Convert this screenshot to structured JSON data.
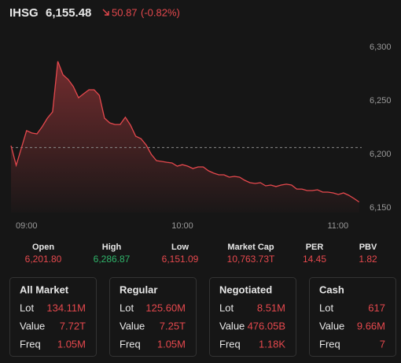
{
  "header": {
    "ticker": "IHSG",
    "price": "6,155.48",
    "change": "50.87",
    "change_pct": "(-0.82%)"
  },
  "chart_data": {
    "type": "line",
    "x": [
      "09:00",
      "09:02",
      "09:04",
      "09:06",
      "09:08",
      "09:10",
      "09:12",
      "09:14",
      "09:16",
      "09:18",
      "09:20",
      "09:22",
      "09:24",
      "09:26",
      "09:28",
      "09:30",
      "09:32",
      "09:34",
      "09:36",
      "09:38",
      "09:40",
      "09:42",
      "09:44",
      "09:46",
      "09:48",
      "09:50",
      "09:52",
      "09:54",
      "09:56",
      "09:58",
      "10:00",
      "10:02",
      "10:04",
      "10:06",
      "10:08",
      "10:10",
      "10:12",
      "10:14",
      "10:16",
      "10:18",
      "10:20",
      "10:22",
      "10:24",
      "10:26",
      "10:28",
      "10:30",
      "10:32",
      "10:34",
      "10:36",
      "10:38",
      "10:40",
      "10:42",
      "10:44",
      "10:46",
      "10:48",
      "10:50",
      "10:52",
      "10:54",
      "10:56",
      "10:58",
      "11:00",
      "11:02",
      "11:04",
      "11:06",
      "11:08",
      "11:10",
      "11:12",
      "11:14"
    ],
    "series": [
      {
        "color": "#e5484d",
        "values": [
          6208.1,
          6189.7,
          6205.9,
          6222.1,
          6219.9,
          6219.1,
          6225.7,
          6233.8,
          6239.7,
          6286.87,
          6274.3,
          6269.9,
          6263.2,
          6252.9,
          6256.6,
          6260.3,
          6260.3,
          6255.1,
          6233.8,
          6229.4,
          6227.9,
          6227.9,
          6234.6,
          6227.2,
          6216.9,
          6214.7,
          6208.8,
          6200.0,
          6194.1,
          6193.4,
          6192.6,
          6191.9,
          6189.0,
          6190.4,
          6189.0,
          6186.8,
          6188.2,
          6188.2,
          6184.6,
          6182.4,
          6180.9,
          6180.9,
          6178.7,
          6179.4,
          6178.7,
          6175.7,
          6173.5,
          6172.8,
          6173.5,
          6170.6,
          6171.3,
          6169.9,
          6171.3,
          6172.1,
          6171.3,
          6167.6,
          6167.6,
          6166.2,
          6166.2,
          6166.9,
          6164.7,
          6164.7,
          6164.0,
          6162.5,
          6164.0,
          6161.8,
          6158.8,
          6155.48
        ]
      }
    ],
    "reference_line": 6206.35,
    "xlim": [
      "09:00",
      "11:15"
    ],
    "xticks": [
      "09:00",
      "10:00",
      "11:00"
    ],
    "ylim": [
      6150,
      6300
    ],
    "yticks": [
      {
        "value": 6150,
        "label": "6,150"
      },
      {
        "value": 6200,
        "label": "6,200"
      },
      {
        "value": 6250,
        "label": "6,250"
      },
      {
        "value": 6300,
        "label": "6,300"
      }
    ]
  },
  "stats": [
    {
      "label": "Open",
      "value": "6,201.80"
    },
    {
      "label": "High",
      "value": "6,286.87"
    },
    {
      "label": "Low",
      "value": "6,151.09"
    },
    {
      "label": "Market Cap",
      "value": "10,763.73T"
    },
    {
      "label": "PER",
      "value": "14.45"
    },
    {
      "label": "PBV",
      "value": "1.82"
    }
  ],
  "panels": [
    {
      "title": "All Market",
      "rows": [
        {
          "label": "Lot",
          "value": "134.11M"
        },
        {
          "label": "Value",
          "value": "7.72T"
        },
        {
          "label": "Freq",
          "value": "1.05M"
        }
      ]
    },
    {
      "title": "Regular",
      "rows": [
        {
          "label": "Lot",
          "value": "125.60M"
        },
        {
          "label": "Value",
          "value": "7.25T"
        },
        {
          "label": "Freq",
          "value": "1.05M"
        }
      ]
    },
    {
      "title": "Negotiated",
      "rows": [
        {
          "label": "Lot",
          "value": "8.51M"
        },
        {
          "label": "Value",
          "value": "476.05B"
        },
        {
          "label": "Freq",
          "value": "1.18K"
        }
      ]
    },
    {
      "title": "Cash",
      "rows": [
        {
          "label": "Lot",
          "value": "617"
        },
        {
          "label": "Value",
          "value": "9.66M"
        },
        {
          "label": "Freq",
          "value": "7"
        }
      ]
    }
  ]
}
